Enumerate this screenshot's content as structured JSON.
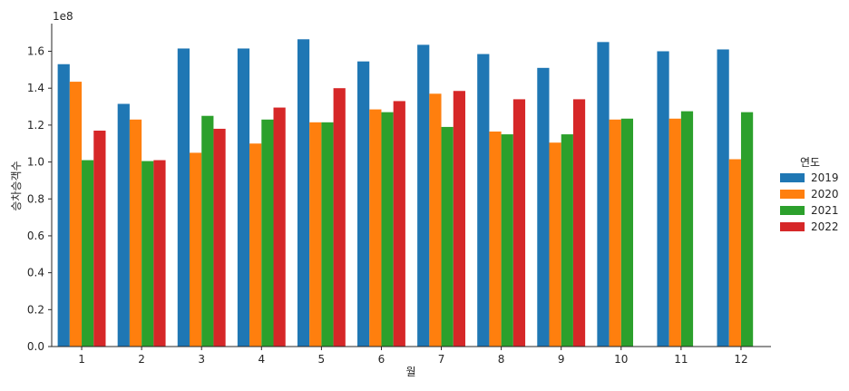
{
  "chart_data": {
    "type": "bar",
    "title": "",
    "xlabel": "월",
    "ylabel": "승차승객수",
    "offset_label": "1e8",
    "categories": [
      "1",
      "2",
      "3",
      "4",
      "5",
      "6",
      "7",
      "8",
      "9",
      "10",
      "11",
      "12"
    ],
    "ylim": [
      0,
      175000000
    ],
    "yticks": [
      0,
      20000000,
      40000000,
      60000000,
      80000000,
      100000000,
      120000000,
      140000000,
      160000000
    ],
    "ytick_labels": [
      "0.0",
      "0.2",
      "0.4",
      "0.6",
      "0.8",
      "1.0",
      "1.2",
      "1.4",
      "1.6"
    ],
    "grid": false,
    "legend": {
      "title": "연도",
      "placement": "right"
    },
    "series": [
      {
        "name": "2019",
        "color": "#1f77b4",
        "values": [
          153000000,
          131500000,
          161500000,
          161500000,
          166500000,
          154500000,
          163500000,
          158500000,
          151000000,
          165000000,
          160000000,
          161000000
        ]
      },
      {
        "name": "2020",
        "color": "#ff7f0e",
        "values": [
          143500000,
          123000000,
          105000000,
          110000000,
          121500000,
          128500000,
          137000000,
          116500000,
          110500000,
          123000000,
          123500000,
          101500000
        ]
      },
      {
        "name": "2021",
        "color": "#2ca02c",
        "values": [
          101000000,
          100500000,
          125000000,
          123000000,
          121500000,
          127000000,
          119000000,
          115000000,
          115000000,
          123500000,
          127500000,
          127000000
        ]
      },
      {
        "name": "2022",
        "color": "#d62728",
        "values": [
          117000000,
          101000000,
          118000000,
          129500000,
          140000000,
          133000000,
          138500000,
          134000000,
          134000000,
          null,
          null,
          null
        ]
      }
    ]
  }
}
